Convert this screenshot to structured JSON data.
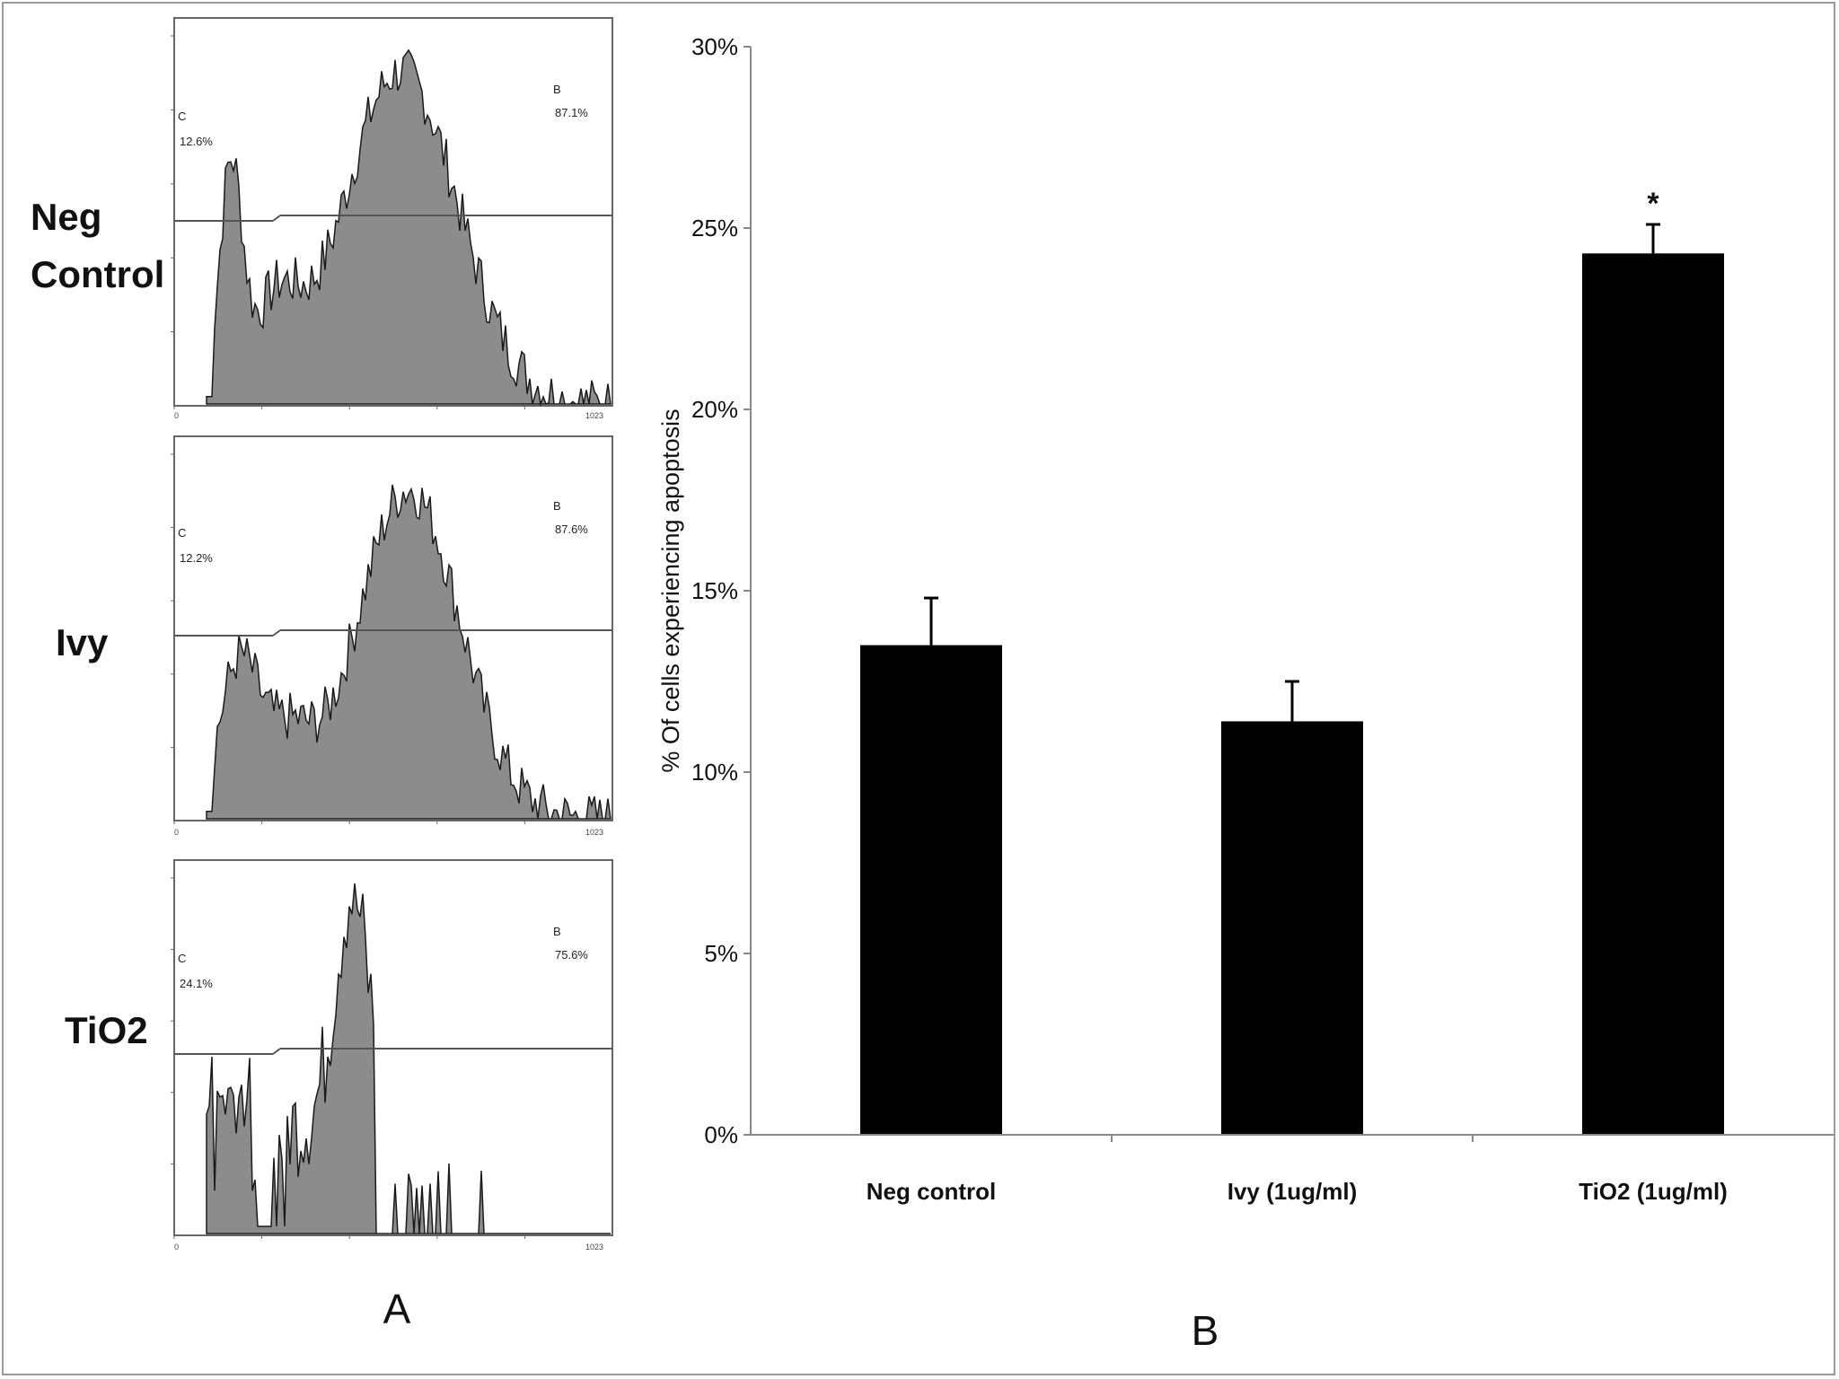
{
  "panel_a": {
    "label": "A",
    "histograms": [
      {
        "row_label_lines": [
          "Neg",
          "Control"
        ],
        "gate_c_letter": "C",
        "gate_c_value": "12.6%",
        "gate_b_letter": "B",
        "gate_b_value": "87.1%",
        "axis_min_label": "0",
        "axis_max_label": "1023"
      },
      {
        "row_label_lines": [
          "Ivy"
        ],
        "gate_c_letter": "C",
        "gate_c_value": "12.2%",
        "gate_b_letter": "B",
        "gate_b_value": "87.6%",
        "axis_min_label": "0",
        "axis_max_label": "1023"
      },
      {
        "row_label_lines": [
          "TiO2"
        ],
        "gate_c_letter": "C",
        "gate_c_value": "24.1%",
        "gate_b_letter": "B",
        "gate_b_value": "75.6%",
        "axis_min_label": "0",
        "axis_max_label": "1023"
      }
    ]
  },
  "panel_b": {
    "label": "B"
  },
  "colors": {
    "histogram_fill": "#8c8c8c",
    "histogram_line": "#1a1a1a",
    "bar_fill": "#000000",
    "axis": "#888888"
  },
  "chart_data": [
    {
      "type": "bar",
      "title": "",
      "categories": [
        "Neg control",
        "Ivy (1ug/ml)",
        "TiO2 (1ug/ml)"
      ],
      "values": [
        13.5,
        11.4,
        24.3
      ],
      "error": [
        1.3,
        1.1,
        0.8
      ],
      "annotations": [
        "",
        "",
        "*"
      ],
      "xlabel": "",
      "ylabel": "% Of cells experiencing apoptosis",
      "ylim": [
        0,
        30
      ],
      "yticks": [
        0,
        5,
        10,
        15,
        20,
        25,
        30
      ],
      "ytick_labels": [
        "0%",
        "5%",
        "10%",
        "15%",
        "20%",
        "25%",
        "30%"
      ],
      "grid": false,
      "legend": "none"
    }
  ]
}
